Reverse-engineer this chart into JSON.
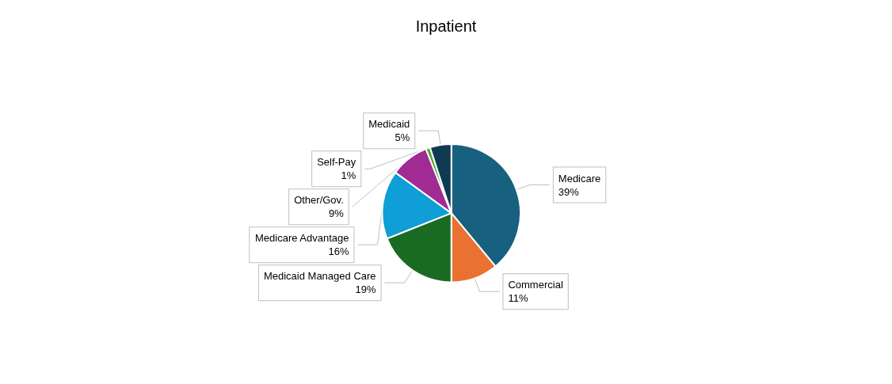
{
  "chart_data": {
    "type": "pie",
    "title": "Inpatient",
    "categories": [
      "Medicare",
      "Commercial",
      "Medicaid Managed Care",
      "Medicare Advantage",
      "Other/Gov.",
      "Self-Pay",
      "Medicaid"
    ],
    "values": [
      39,
      11,
      19,
      16,
      9,
      1,
      5
    ],
    "value_labels": [
      "39%",
      "11%",
      "19%",
      "16%",
      "9%",
      "1%",
      "5%"
    ],
    "colors": [
      "#17607f",
      "#e97132",
      "#196b24",
      "#0f9ed5",
      "#a02b93",
      "#4ea72e",
      "#0e3a52"
    ],
    "legend": false
  }
}
